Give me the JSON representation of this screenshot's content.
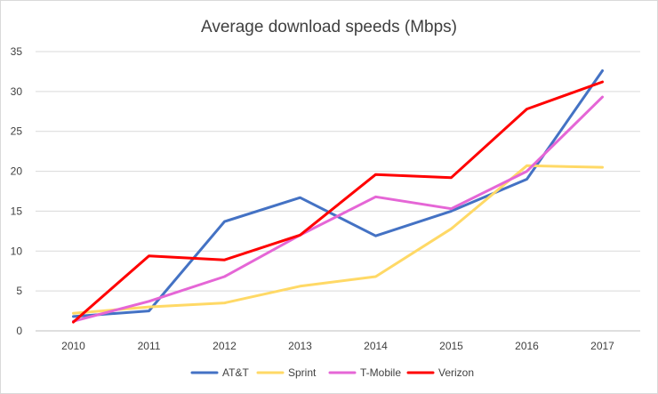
{
  "chart_data": {
    "type": "line",
    "title": "Average download speeds (Mbps)",
    "xlabel": "",
    "ylabel": "",
    "categories": [
      "2010",
      "2011",
      "2012",
      "2013",
      "2014",
      "2015",
      "2016",
      "2017"
    ],
    "ylim": [
      0,
      35
    ],
    "yticks": [
      0,
      5,
      10,
      15,
      20,
      25,
      30,
      35
    ],
    "grid": true,
    "legend_position": "bottom",
    "series": [
      {
        "name": "AT&T",
        "color": "#4472c4",
        "values": [
          1.8,
          2.5,
          13.7,
          16.7,
          11.9,
          15.0,
          19.0,
          32.6
        ]
      },
      {
        "name": "Sprint",
        "color": "#ffd966",
        "values": [
          2.2,
          3.0,
          3.5,
          5.6,
          6.8,
          12.8,
          20.7,
          20.5
        ]
      },
      {
        "name": "T-Mobile",
        "color": "#e566d6",
        "values": [
          1.2,
          3.7,
          6.8,
          12.0,
          16.8,
          15.3,
          20.0,
          29.3
        ]
      },
      {
        "name": "Verizon",
        "color": "#ff0000",
        "values": [
          1.1,
          9.4,
          8.9,
          12.0,
          19.6,
          19.2,
          27.8,
          31.2
        ]
      }
    ]
  }
}
